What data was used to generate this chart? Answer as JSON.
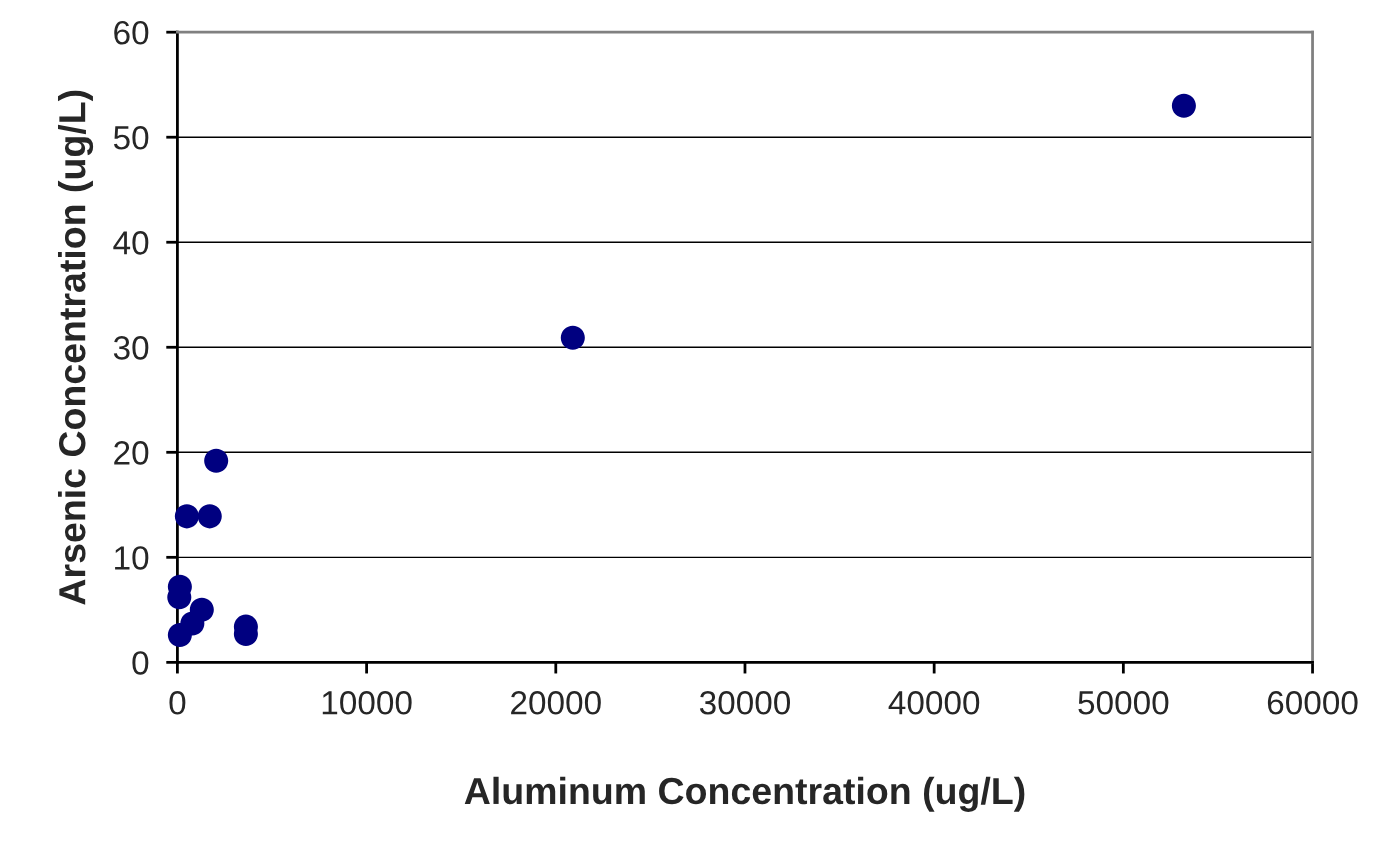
{
  "chart_data": {
    "type": "scatter",
    "xlabel": "Aluminum Concentration (ug/L)",
    "ylabel": "Arsenic Concentration (ug/L)",
    "x": [
      53200,
      20900,
      2050,
      500,
      1710,
      130,
      100,
      1290,
      790,
      130,
      3620,
      3620
    ],
    "values": [
      53,
      30.9,
      19.2,
      13.9,
      13.9,
      7.2,
      6.2,
      5.0,
      3.7,
      2.6,
      3.4,
      2.7
    ],
    "color": "#000080",
    "marker": "circle",
    "xlim": [
      0,
      60000
    ],
    "xticks": [
      0,
      10000,
      20000,
      30000,
      40000,
      50000,
      60000
    ],
    "ylim": [
      0,
      60
    ],
    "yticks": [
      0,
      10,
      20,
      30,
      40,
      50,
      60
    ],
    "grid": "y",
    "legend": false
  }
}
